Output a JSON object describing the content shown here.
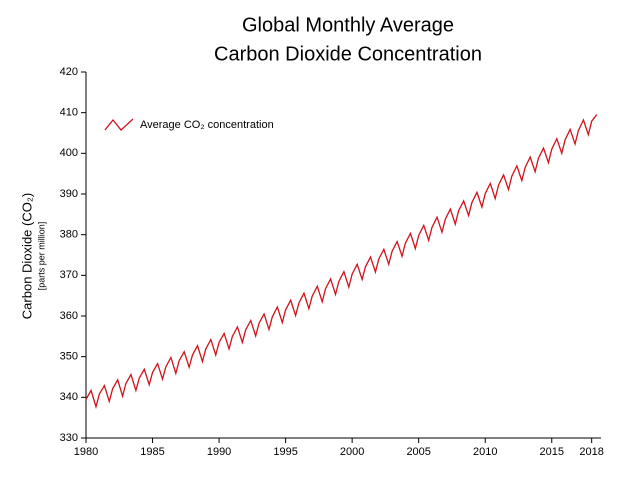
{
  "chart_data": {
    "type": "line",
    "title": [
      "Global Monthly Average",
      "Carbon Dioxide Concentration"
    ],
    "ylabel": "Carbon Dioxide (CO₂)",
    "ylabel_note": "[parts per million]",
    "legend": "upper left",
    "x": [
      1980,
      1980.38,
      1980.75,
      1981,
      1981.38,
      1981.75,
      1982,
      1982.38,
      1982.75,
      1983,
      1983.38,
      1983.75,
      1984,
      1984.38,
      1984.75,
      1985,
      1985.38,
      1985.75,
      1986,
      1986.38,
      1986.75,
      1987,
      1987.38,
      1987.75,
      1988,
      1988.38,
      1988.75,
      1989,
      1989.38,
      1989.75,
      1990,
      1990.38,
      1990.75,
      1991,
      1991.38,
      1991.75,
      1992,
      1992.38,
      1992.75,
      1993,
      1993.38,
      1993.75,
      1994,
      1994.38,
      1994.75,
      1995,
      1995.38,
      1995.75,
      1996,
      1996.38,
      1996.75,
      1997,
      1997.38,
      1997.75,
      1998,
      1998.38,
      1998.75,
      1999,
      1999.38,
      1999.75,
      2000,
      2000.38,
      2000.75,
      2001,
      2001.38,
      2001.75,
      2002,
      2002.38,
      2002.75,
      2003,
      2003.38,
      2003.75,
      2004,
      2004.38,
      2004.75,
      2005,
      2005.38,
      2005.75,
      2006,
      2006.38,
      2006.75,
      2007,
      2007.38,
      2007.75,
      2008,
      2008.38,
      2008.75,
      2009,
      2009.38,
      2009.75,
      2010,
      2010.38,
      2010.75,
      2011,
      2011.38,
      2011.75,
      2012,
      2012.38,
      2012.75,
      2013,
      2013.38,
      2013.75,
      2014,
      2014.38,
      2014.75,
      2015,
      2015.38,
      2015.75,
      2016,
      2016.38,
      2016.75,
      2017,
      2017.38,
      2017.75,
      2018,
      2018.38
    ],
    "series": [
      {
        "name": "Average CO₂ concentration",
        "color": "#d0121b",
        "values": [
          339.5,
          341.7,
          337.7,
          340.8,
          342.9,
          339.0,
          342.1,
          344.3,
          340.3,
          343.4,
          345.6,
          341.7,
          344.7,
          346.9,
          343.1,
          346.1,
          348.3,
          344.5,
          347.5,
          349.8,
          345.9,
          349.0,
          351.2,
          347.4,
          350.4,
          352.7,
          348.8,
          351.9,
          354.2,
          350.4,
          353.5,
          355.7,
          351.9,
          355.0,
          357.3,
          353.5,
          356.6,
          358.9,
          355.1,
          358.2,
          360.5,
          356.7,
          359.8,
          362.2,
          358.4,
          361.5,
          363.9,
          360.1,
          363.2,
          365.6,
          361.8,
          364.9,
          367.3,
          363.5,
          366.7,
          369.1,
          365.3,
          368.5,
          370.9,
          367.1,
          370.3,
          372.7,
          369.0,
          372.1,
          374.5,
          370.8,
          374.0,
          376.4,
          372.7,
          375.9,
          378.3,
          374.7,
          377.9,
          380.3,
          376.6,
          379.8,
          382.3,
          378.6,
          381.8,
          384.3,
          380.6,
          383.8,
          386.3,
          382.6,
          385.9,
          388.3,
          384.7,
          387.9,
          390.4,
          386.8,
          390.1,
          392.6,
          388.9,
          392.2,
          394.7,
          391.1,
          394.4,
          396.9,
          393.3,
          396.5,
          399.1,
          395.5,
          398.8,
          401.3,
          397.7,
          401.0,
          403.6,
          400.0,
          403.3,
          405.9,
          402.3,
          405.6,
          408.2,
          404.6,
          407.9,
          409.5
        ]
      }
    ],
    "xlim": [
      1980,
      2018.4
    ],
    "xticks": [
      1980,
      1985,
      1990,
      1995,
      2000,
      2005,
      2010,
      2015,
      2018
    ],
    "ylim": [
      330,
      420
    ],
    "yticks": [
      330,
      340,
      350,
      360,
      370,
      380,
      390,
      400,
      410,
      420
    ],
    "grid": false
  }
}
